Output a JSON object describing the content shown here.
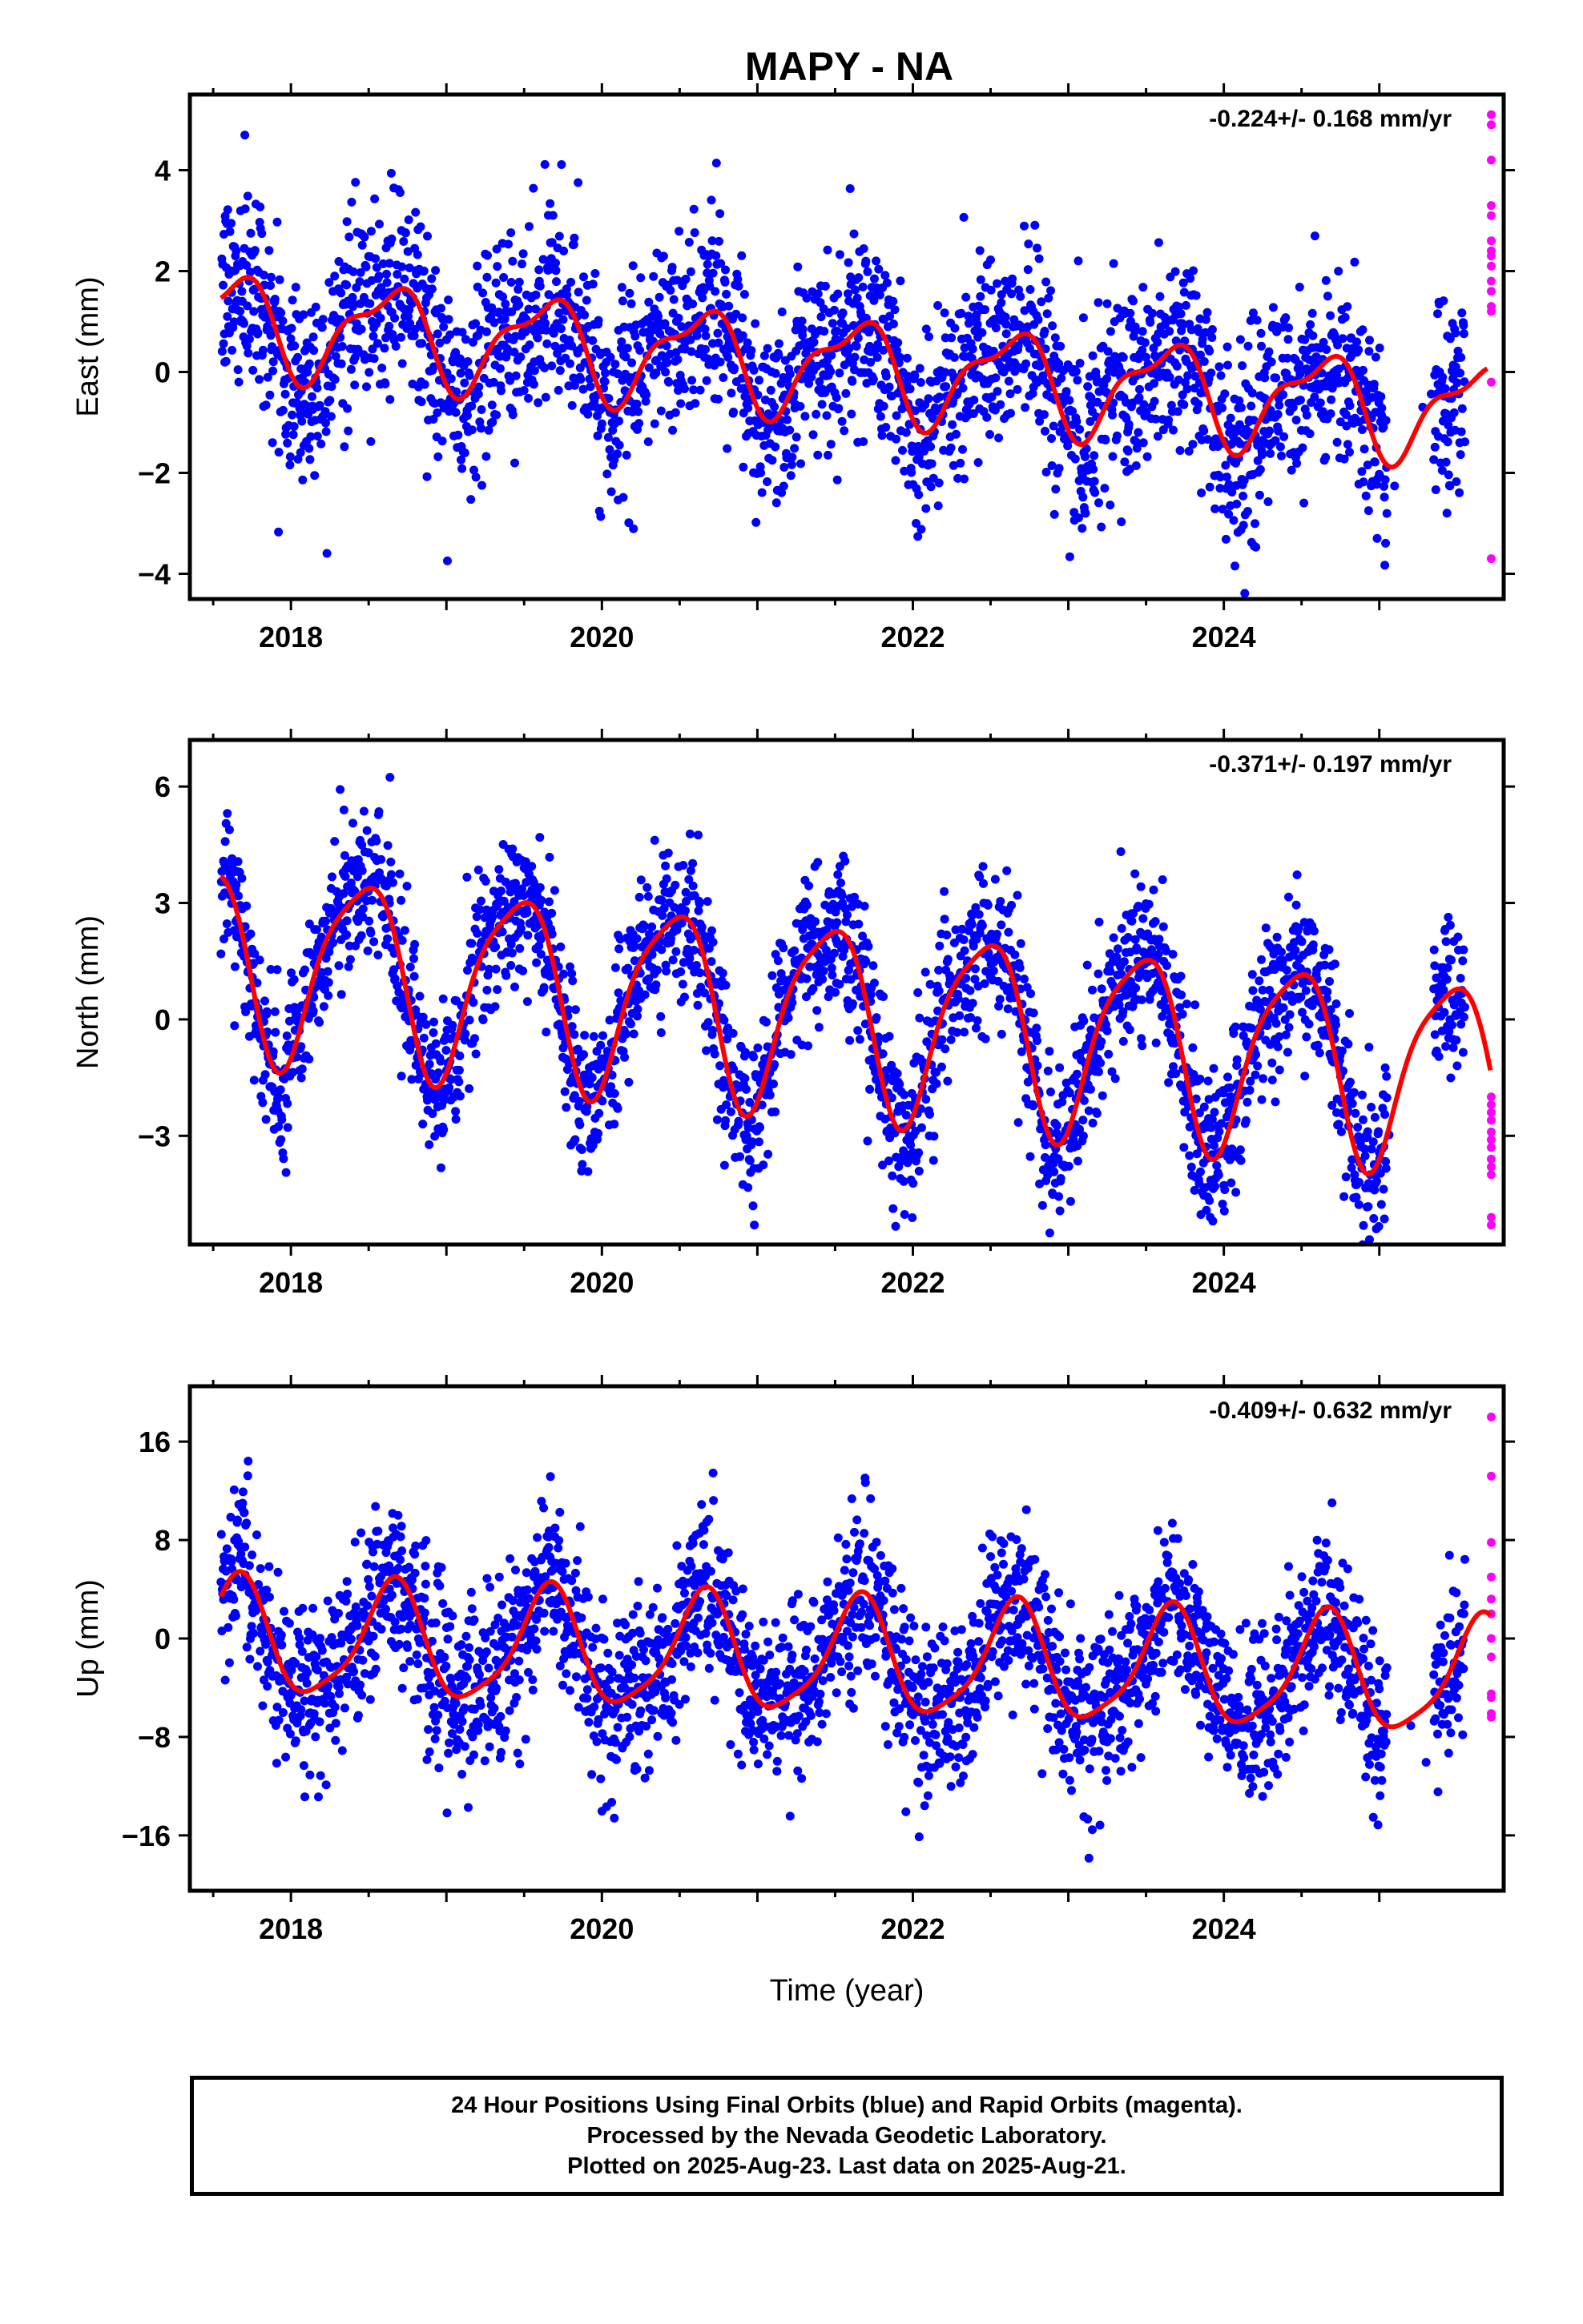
{
  "title": "MAPY - NA",
  "footer": {
    "line1": "24 Hour Positions Using Final Orbits (blue) and Rapid Orbits (magenta).",
    "line2": "Processed by the Nevada Geodetic Laboratory.",
    "line3": "Plotted on 2025-Aug-23. Last data on 2025-Aug-21."
  },
  "colors": {
    "final": "#0000ff",
    "rapid": "#ff00ff",
    "fit": "#ff0000",
    "axis": "#000000"
  },
  "chart_data": [
    {
      "type": "scatter",
      "ylabel": "East (mm)",
      "xlabel": "",
      "xlim": [
        2017.35,
        2025.8
      ],
      "ylim": [
        -4.5,
        5.5
      ],
      "x_ticks": [
        "2018",
        "2020",
        "2022",
        "2024"
      ],
      "x_tick_values": [
        2018,
        2020,
        2022,
        2024
      ],
      "y_ticks": [
        "−4",
        "−2",
        "0",
        "2",
        "4"
      ],
      "y_tick_values": [
        -4,
        -2,
        0,
        2,
        4
      ],
      "rate": "-0.224+/- 0.168 mm/yr",
      "model": {
        "start": 2017.55,
        "end": 2025.7,
        "offset": 1.0,
        "trend": -0.224,
        "annual_amp": 0.9,
        "annual_peak": 0.62,
        "semi_amp": 0.35,
        "semi_phase": 0.3,
        "noise": 0.95
      },
      "series": [
        {
          "name": "Final Orbits",
          "color": "#0000ff",
          "x_range": [
            2017.55,
            2025.55
          ]
        },
        {
          "name": "Rapid Orbits",
          "color": "#ff00ff",
          "x": [
            2025.72,
            2025.72,
            2025.72,
            2025.72,
            2025.72,
            2025.72,
            2025.72,
            2025.72,
            2025.72,
            2025.72,
            2025.72,
            2025.72,
            2025.72,
            2025.72,
            2025.72
          ],
          "y": [
            5.1,
            4.9,
            4.2,
            3.3,
            3.1,
            2.6,
            2.4,
            2.3,
            2.1,
            1.8,
            1.6,
            1.3,
            1.2,
            -0.2,
            -3.7
          ]
        }
      ]
    },
    {
      "type": "scatter",
      "ylabel": "North (mm)",
      "xlabel": "",
      "xlim": [
        2017.35,
        2025.8
      ],
      "ylim": [
        -5.8,
        7.2
      ],
      "x_ticks": [
        "2018",
        "2020",
        "2022",
        "2024"
      ],
      "x_tick_values": [
        2018,
        2020,
        2022,
        2024
      ],
      "y_ticks": [
        "−3",
        "0",
        "3",
        "6"
      ],
      "y_tick_values": [
        -3,
        0,
        3,
        6
      ],
      "rate": "-0.371+/- 0.197 mm/yr",
      "model": {
        "start": 2017.55,
        "end": 2025.72,
        "offset": 1.6,
        "trend": -0.371,
        "annual_amp": 2.4,
        "annual_peak": 0.45,
        "semi_amp": 0.5,
        "semi_phase": 0.15,
        "noise": 1.0
      },
      "series": [
        {
          "name": "Final Orbits",
          "color": "#0000ff",
          "x_range": [
            2017.55,
            2025.55
          ]
        },
        {
          "name": "Rapid Orbits",
          "color": "#ff00ff",
          "x": [
            2025.72,
            2025.72,
            2025.72,
            2025.72,
            2025.72,
            2025.72,
            2025.72,
            2025.72,
            2025.72,
            2025.72,
            2025.72,
            2025.72
          ],
          "y": [
            -2.0,
            -2.2,
            -2.4,
            -2.6,
            -2.9,
            -3.1,
            -3.3,
            -3.6,
            -3.8,
            -4.0,
            -5.1,
            -5.3
          ]
        }
      ]
    },
    {
      "type": "scatter",
      "ylabel": "Up (mm)",
      "xlabel": "Time (year)",
      "xlim": [
        2017.35,
        2025.8
      ],
      "ylim": [
        -20.5,
        20.5
      ],
      "x_ticks": [
        "2018",
        "2020",
        "2022",
        "2024"
      ],
      "x_tick_values": [
        2018,
        2020,
        2022,
        2024
      ],
      "y_ticks": [
        "−16",
        "−8",
        "0",
        "8",
        "16"
      ],
      "y_tick_values": [
        -16,
        -8,
        0,
        8,
        16
      ],
      "rate": "-0.409+/- 0.632 mm/yr",
      "model": {
        "start": 2017.55,
        "end": 2025.72,
        "offset": 0.0,
        "trend": -0.409,
        "annual_amp": 4.6,
        "annual_peak": 0.65,
        "semi_amp": 1.0,
        "semi_phase": 0.2,
        "noise": 3.4
      },
      "series": [
        {
          "name": "Final Orbits",
          "color": "#0000ff",
          "x_range": [
            2017.55,
            2025.55
          ]
        },
        {
          "name": "Rapid Orbits",
          "color": "#ff00ff",
          "x": [
            2025.72,
            2025.72,
            2025.72,
            2025.72,
            2025.72,
            2025.72,
            2025.72,
            2025.72,
            2025.72,
            2025.72,
            2025.72,
            2025.72
          ],
          "y": [
            18.0,
            13.2,
            7.8,
            5.0,
            3.2,
            2.0,
            0.0,
            -1.5,
            -4.5,
            -4.8,
            -6.1,
            -6.4
          ]
        }
      ]
    }
  ]
}
